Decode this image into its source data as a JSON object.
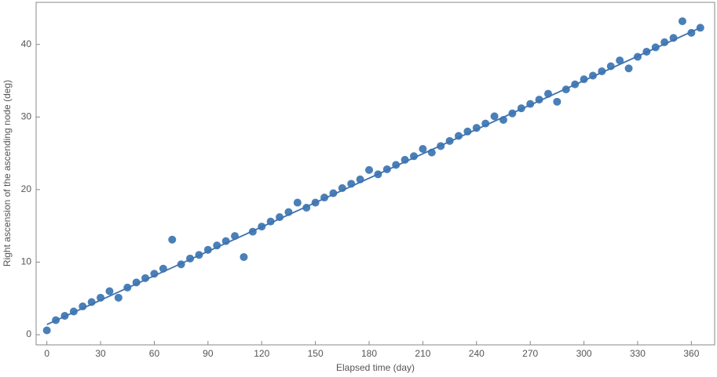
{
  "chart_data": {
    "type": "scatter",
    "x_label": "Elapsed time (day)",
    "y_label": "Right ascension of the ascending node (deg)",
    "xlim": [
      -6,
      373
    ],
    "ylim": [
      -1.4,
      45.8
    ],
    "xticks": [
      0,
      30,
      60,
      90,
      120,
      150,
      180,
      210,
      240,
      270,
      300,
      330,
      360
    ],
    "yticks": [
      0,
      10,
      20,
      30,
      40
    ],
    "grid": false,
    "series": [
      {
        "type": "scatter",
        "color": "#4a7fb8",
        "x": [
          0,
          5,
          10,
          15,
          20,
          25,
          30,
          35,
          40,
          45,
          50,
          55,
          60,
          65,
          70,
          75,
          80,
          85,
          90,
          95,
          100,
          105,
          110,
          115,
          120,
          125,
          130,
          135,
          140,
          145,
          150,
          155,
          160,
          165,
          170,
          175,
          180,
          185,
          190,
          195,
          200,
          205,
          210,
          215,
          220,
          225,
          230,
          235,
          240,
          245,
          250,
          255,
          260,
          265,
          270,
          275,
          280,
          285,
          290,
          295,
          300,
          305,
          310,
          315,
          320,
          325,
          330,
          335,
          340,
          345,
          350,
          355,
          360,
          365
        ],
        "values": [
          0.6,
          2.0,
          2.6,
          3.2,
          3.9,
          4.5,
          5.1,
          6.0,
          5.1,
          6.5,
          7.2,
          7.8,
          8.4,
          9.1,
          13.1,
          9.7,
          10.5,
          11.0,
          11.7,
          12.3,
          12.9,
          13.6,
          10.7,
          14.2,
          14.9,
          15.6,
          16.2,
          16.9,
          18.2,
          17.5,
          18.2,
          18.9,
          19.5,
          20.2,
          20.8,
          21.4,
          22.7,
          22.1,
          22.8,
          23.4,
          24.1,
          24.6,
          25.6,
          25.1,
          26.0,
          26.7,
          27.4,
          28.0,
          28.5,
          29.1,
          30.1,
          29.6,
          30.5,
          31.2,
          31.8,
          32.4,
          33.2,
          32.1,
          33.8,
          34.5,
          35.2,
          35.7,
          36.3,
          37.0,
          37.8,
          36.7,
          38.3,
          39.0,
          39.6,
          40.3,
          40.9,
          43.2,
          41.6,
          42.3
        ]
      },
      {
        "type": "line",
        "color": "#3d72ae",
        "x": [
          0,
          365
        ],
        "values": [
          1.4,
          42.3
        ]
      }
    ]
  }
}
